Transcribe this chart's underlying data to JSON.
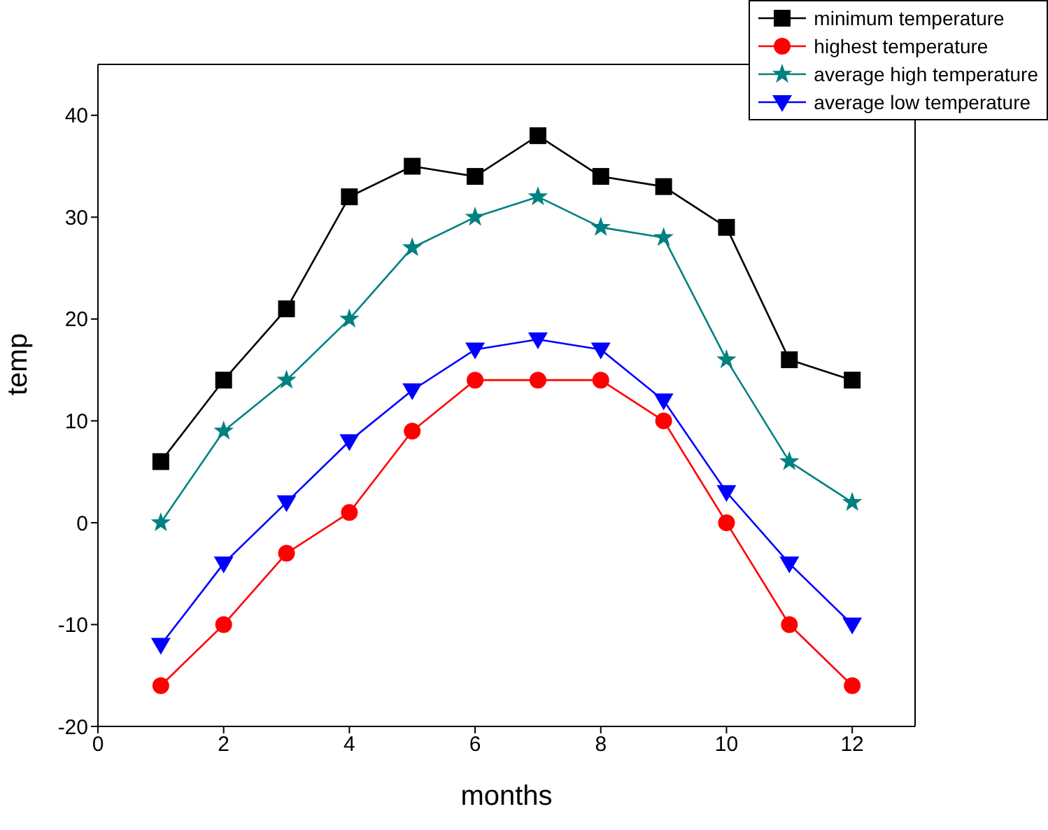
{
  "chart_data": {
    "type": "line",
    "xlabel": "months",
    "ylabel": "temp",
    "x": [
      1,
      2,
      3,
      4,
      5,
      6,
      7,
      8,
      9,
      10,
      11,
      12
    ],
    "series": [
      {
        "name": "minimum temperature",
        "color": "#000000",
        "marker": "square",
        "values": [
          6,
          14,
          21,
          32,
          35,
          34,
          38,
          34,
          33,
          29,
          16,
          14
        ]
      },
      {
        "name": "highest temperature",
        "color": "#ff0000",
        "marker": "circle",
        "values": [
          -16,
          -10,
          -3,
          1,
          9,
          14,
          14,
          14,
          10,
          0,
          -10,
          -16
        ]
      },
      {
        "name": "average high temperature",
        "color": "#008080",
        "marker": "star",
        "values": [
          0,
          9,
          14,
          20,
          27,
          30,
          32,
          29,
          28,
          16,
          6,
          2
        ]
      },
      {
        "name": "average low temperature",
        "color": "#0000ff",
        "marker": "triangle",
        "values": [
          -12,
          -4,
          2,
          8,
          13,
          17,
          18,
          17,
          12,
          3,
          -4,
          -10
        ]
      }
    ],
    "xlim": [
      0,
      13
    ],
    "xticks": [
      0,
      2,
      4,
      6,
      8,
      10,
      12
    ],
    "ylim": [
      -20,
      45
    ],
    "yticks": [
      -20,
      -10,
      0,
      10,
      20,
      30,
      40
    ],
    "grid": false,
    "legend": "top right",
    "line_style": "solid"
  }
}
